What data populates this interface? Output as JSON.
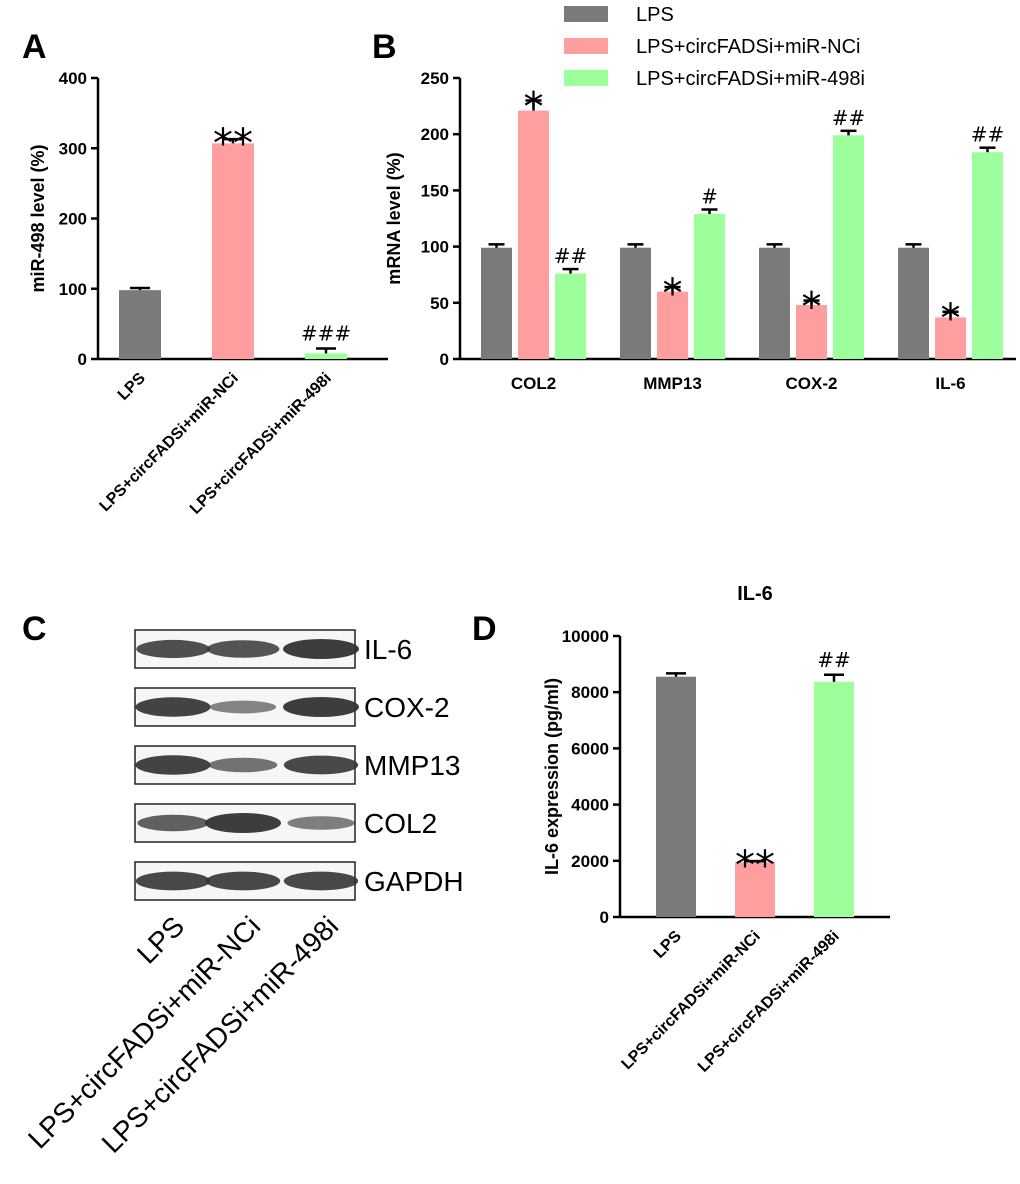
{
  "colors": {
    "LPS": "#7a7a7a",
    "miR-NCi": "#ff9e9e",
    "miR-498i": "#9cff9c",
    "band": "#333333"
  },
  "panel_labels": {
    "A": "A",
    "B": "B",
    "C": "C",
    "D": "D"
  },
  "chart_data": [
    {
      "panel": "A",
      "type": "bar",
      "title": "",
      "ylabel": "miR-498 level (%)",
      "xlabel": "",
      "ylim": [
        0,
        400
      ],
      "yticks": [
        0,
        100,
        200,
        300,
        400
      ],
      "categories": [
        "LPS",
        "LPS+circFADSi+miR-NCi",
        "LPS+circFADSi+miR-498i"
      ],
      "values": [
        98,
        307,
        8
      ],
      "errors": [
        3,
        6,
        7
      ],
      "color_keys": [
        "LPS",
        "miR-NCi",
        "miR-498i"
      ],
      "annotations": [
        "",
        "**",
        "###"
      ]
    },
    {
      "panel": "B",
      "type": "bar",
      "title": "",
      "ylabel": "mRNA level (%)",
      "xlabel": "",
      "ylim": [
        0,
        250
      ],
      "yticks": [
        0,
        50,
        100,
        150,
        200,
        250
      ],
      "categories": [
        "COL2",
        "MMP13",
        "COX-2",
        "IL-6"
      ],
      "legend_position": "top",
      "series": [
        {
          "name": "LPS",
          "color_key": "LPS",
          "values": [
            99,
            99,
            99,
            99
          ],
          "errors": [
            3,
            3,
            3,
            3
          ],
          "annotations": [
            "",
            "",
            "",
            ""
          ]
        },
        {
          "name": "LPS+circFADSi+miR-NCi",
          "color_key": "miR-NCi",
          "values": [
            221,
            60,
            48,
            37
          ],
          "errors": [
            9,
            4,
            4,
            5
          ],
          "annotations": [
            "*",
            "*",
            "*",
            "*"
          ]
        },
        {
          "name": "LPS+circFADSi+miR-498i",
          "color_key": "miR-498i",
          "values": [
            76,
            129,
            199,
            184
          ],
          "errors": [
            4,
            4,
            4,
            4
          ],
          "annotations": [
            "##",
            "#",
            "##",
            "##"
          ]
        }
      ]
    },
    {
      "panel": "D",
      "type": "bar",
      "title": "IL-6",
      "ylabel": "IL-6 expression (pg/ml)",
      "xlabel": "",
      "ylim": [
        0,
        10000
      ],
      "yticks": [
        0,
        2000,
        4000,
        6000,
        8000,
        10000
      ],
      "categories": [
        "LPS",
        "LPS+circFADSi+miR-NCi",
        "LPS+circFADSi+miR-498i"
      ],
      "values": [
        8550,
        1950,
        8370
      ],
      "errors": [
        120,
        40,
        250
      ],
      "color_keys": [
        "LPS",
        "miR-NCi",
        "miR-498i"
      ],
      "annotations": [
        "",
        "**",
        "##"
      ]
    }
  ],
  "western_blot": {
    "panel": "C",
    "proteins": [
      "IL-6",
      "COX-2",
      "MMP13",
      "COL2",
      "GAPDH"
    ],
    "lanes": [
      "LPS",
      "LPS+circFADSi+miR-NCi",
      "LPS+circFADSi+miR-498i"
    ],
    "intensities": [
      [
        0.85,
        0.8,
        1.0
      ],
      [
        0.95,
        0.4,
        1.0
      ],
      [
        0.95,
        0.55,
        0.9
      ],
      [
        0.7,
        1.0,
        0.45
      ],
      [
        0.9,
        0.9,
        0.9
      ]
    ]
  }
}
